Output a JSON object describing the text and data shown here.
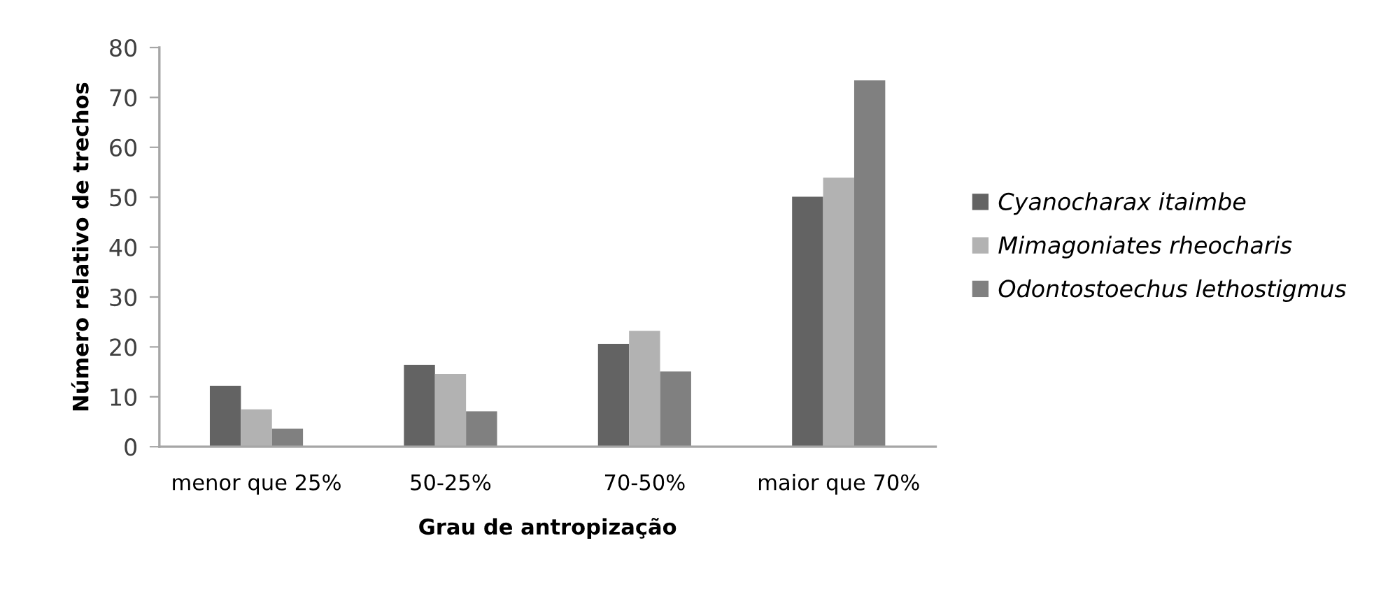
{
  "chart_data": {
    "type": "bar",
    "xlabel": "Grau de antropização",
    "ylabel": "Número relativo de trechos",
    "categories": [
      "menor que 25%",
      "50-25%",
      "70-50%",
      "maior que 70%"
    ],
    "series": [
      {
        "name": "Cyanocharax itaimbe",
        "color": "#636363",
        "values": [
          12.2,
          16.4,
          20.6,
          50.1
        ]
      },
      {
        "name": "Mimagoniates rheocharis",
        "color": "#b2b2b2",
        "values": [
          7.5,
          14.6,
          23.2,
          53.9
        ]
      },
      {
        "name": "Odontostoechus lethostigmus",
        "color": "#808080",
        "values": [
          3.6,
          7.1,
          15.1,
          73.4
        ]
      }
    ],
    "ylim": [
      0,
      80
    ],
    "yticks": [
      0,
      10,
      20,
      30,
      40,
      50,
      60,
      70,
      80
    ],
    "grid": false,
    "legend": "right"
  }
}
